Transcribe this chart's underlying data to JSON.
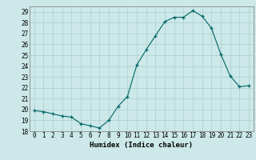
{
  "x": [
    0,
    1,
    2,
    3,
    4,
    5,
    6,
    7,
    8,
    9,
    10,
    11,
    12,
    13,
    14,
    15,
    16,
    17,
    18,
    19,
    20,
    21,
    22,
    23
  ],
  "y": [
    19.9,
    19.8,
    19.6,
    19.4,
    19.3,
    18.7,
    18.5,
    18.3,
    19.0,
    20.3,
    21.2,
    24.1,
    25.5,
    26.8,
    28.1,
    28.5,
    28.5,
    29.1,
    28.6,
    27.5,
    25.1,
    23.1,
    22.1,
    22.2
  ],
  "xlabel": "Humidex (Indice chaleur)",
  "xlim": [
    -0.5,
    23.5
  ],
  "ylim": [
    18,
    29.5
  ],
  "yticks": [
    18,
    19,
    20,
    21,
    22,
    23,
    24,
    25,
    26,
    27,
    28,
    29
  ],
  "xticks": [
    0,
    1,
    2,
    3,
    4,
    5,
    6,
    7,
    8,
    9,
    10,
    11,
    12,
    13,
    14,
    15,
    16,
    17,
    18,
    19,
    20,
    21,
    22,
    23
  ],
  "line_color": "#006666",
  "marker": "+",
  "bg_color": "#cce8e8",
  "grid_color": "#aacece",
  "label_fontsize": 6.5,
  "tick_fontsize": 5.5
}
